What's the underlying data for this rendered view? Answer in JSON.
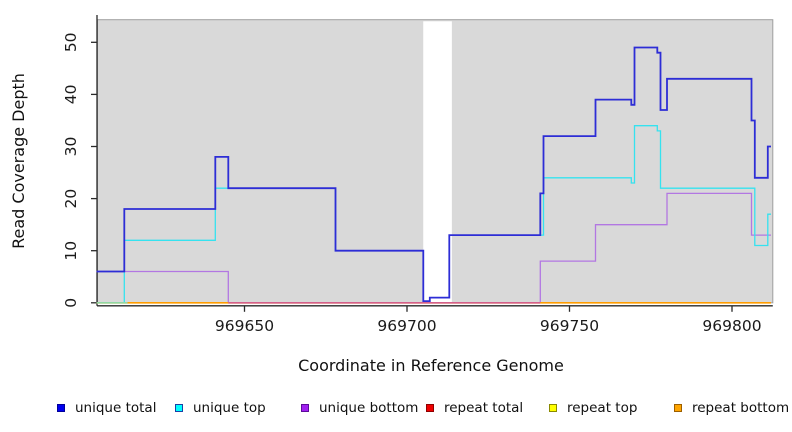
{
  "chart_data": {
    "type": "line",
    "subtype": "step-coverage",
    "title": "",
    "xlabel": "Coordinate in Reference Genome",
    "ylabel": "Read Coverage Depth",
    "xlim": [
      969604.5,
      969812
    ],
    "ylim": [
      0,
      54
    ],
    "grid": false,
    "legend_position": "bottom",
    "plot_bg": "#d9d9d9",
    "plot_bg_border": "#9f9f9f",
    "x_ticks": [
      969650,
      969700,
      969750,
      969800
    ],
    "y_ticks": [
      0,
      10,
      20,
      30,
      40,
      50
    ],
    "gap_region": {
      "from": 969705,
      "to": 969713.8,
      "fill": "#ffffff"
    },
    "x_end": 969812,
    "series": [
      {
        "name": "unique total",
        "color": "#2d2dd6",
        "x": [
          969604.5,
          969613,
          969641,
          969645,
          969678,
          969705,
          969707,
          969713,
          969741,
          969742,
          969758,
          969769,
          969770,
          969777,
          969778,
          969780,
          969806,
          969807,
          969811
        ],
        "y": [
          6,
          18,
          28,
          22,
          10,
          0,
          1,
          13,
          21,
          32,
          39,
          38,
          49,
          48,
          37,
          43,
          35,
          24,
          30
        ]
      },
      {
        "name": "unique top",
        "color": "#35e2ef",
        "x": [
          969604.5,
          969613,
          969641,
          969678,
          969705,
          969707,
          969713,
          969742,
          969769,
          969770,
          969777,
          969778,
          969807,
          969811
        ],
        "y": [
          0,
          12,
          22,
          10,
          0,
          1,
          13,
          24,
          23,
          34,
          33,
          22,
          11,
          17
        ]
      },
      {
        "name": "unique bottom",
        "color": "#b277e2",
        "x": [
          969604.5,
          969645,
          969741,
          969758,
          969780,
          969806
        ],
        "y": [
          6,
          0,
          8,
          15,
          21,
          13
        ]
      },
      {
        "name": "repeat total",
        "color": "#ee0000",
        "x": [
          969604.5
        ],
        "y": [
          0
        ]
      },
      {
        "name": "repeat top",
        "color": "#ffff00",
        "x": [
          969604.5
        ],
        "y": [
          0
        ]
      },
      {
        "name": "repeat bottom",
        "color": "#ff9d00",
        "x": [
          969604.5
        ],
        "y": [
          0
        ]
      }
    ],
    "baseline_overlays": [
      {
        "note": "unique-bottom-at-zero over repeat lines renders pink",
        "from": 969645,
        "to": 969741,
        "color": "#d4608c"
      },
      {
        "note": "unique-top-at-zero over repeat lines renders pale green",
        "from": 969604.5,
        "to": 969614,
        "color": "#90d8a4"
      }
    ]
  },
  "legend": {
    "items": [
      {
        "label": "unique total",
        "color": "#0000ee",
        "border": "#00009a"
      },
      {
        "label": "unique top",
        "color": "#00ffff",
        "border": "#1b3fa6"
      },
      {
        "label": "unique bottom",
        "color": "#a020f0",
        "border": "#5d0b9b"
      },
      {
        "label": "repeat total",
        "color": "#ee0000",
        "border": "#8f0000"
      },
      {
        "label": "repeat top",
        "color": "#ffff00",
        "border": "#8a8a00"
      },
      {
        "label": "repeat bottom",
        "color": "#ffa500",
        "border": "#9c5f00"
      }
    ]
  }
}
